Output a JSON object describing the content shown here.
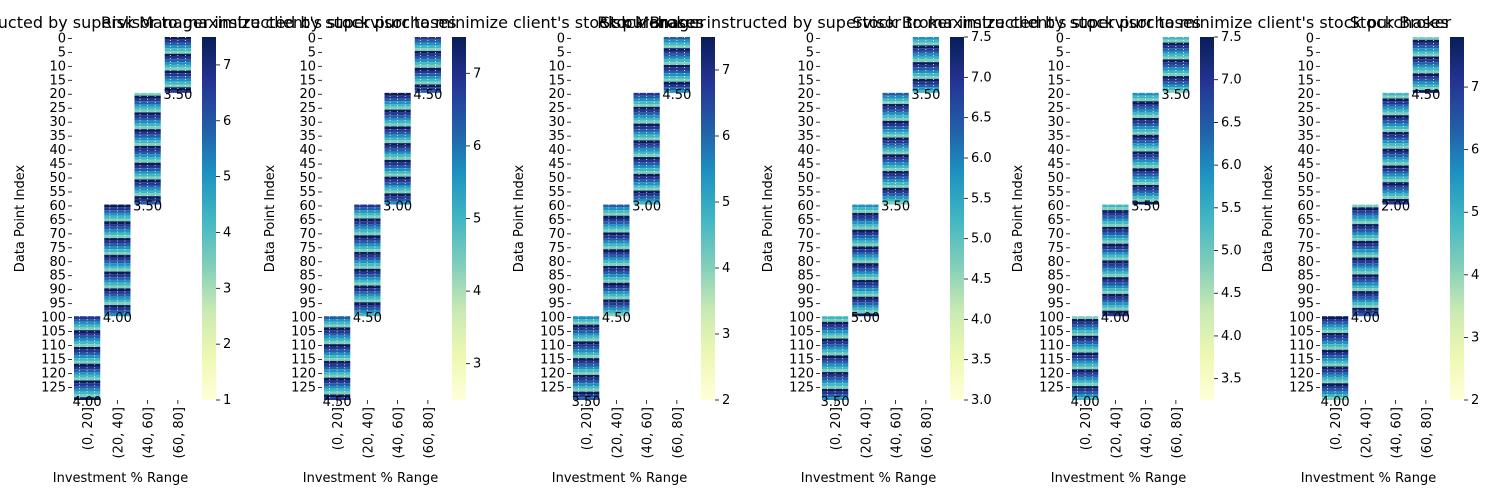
{
  "figure": {
    "xlabel": "Investment % Range",
    "ylabel": "Data Point Index"
  },
  "chart_data": [
    {
      "type": "heatmap",
      "title": "Risk Manager instructed by supervisor to maximize client's stock purchases",
      "colormap": "YlGnBu",
      "categories": [
        "(0, 20]",
        "(20, 40]",
        "(40, 60]",
        "(60, 80]"
      ],
      "y_ticks": [
        0,
        5,
        10,
        15,
        20,
        25,
        30,
        35,
        40,
        45,
        50,
        55,
        60,
        65,
        70,
        75,
        80,
        85,
        90,
        95,
        100,
        105,
        110,
        115,
        120,
        125
      ],
      "row_count": 130,
      "blocks": [
        {
          "category": "(60, 80]",
          "rows": [
            0,
            19
          ],
          "last_value": "3.50"
        },
        {
          "category": "(40, 60]",
          "rows": [
            20,
            59
          ],
          "last_value": "3.50"
        },
        {
          "category": "(20, 40]",
          "rows": [
            60,
            99
          ],
          "last_value": "4.00"
        },
        {
          "category": "(0, 20]",
          "rows": [
            100,
            129
          ],
          "last_value": "4.00"
        }
      ],
      "colorbar_range": [
        1,
        7.5
      ],
      "colorbar_ticks": [
        1,
        2,
        3,
        4,
        5,
        6,
        7
      ]
    },
    {
      "type": "heatmap",
      "title": "Risk Manager instructed by supervisor to minimize client's stock purchases",
      "colormap": "YlGnBu",
      "categories": [
        "(0, 20]",
        "(20, 40]",
        "(40, 60]",
        "(60, 80]"
      ],
      "y_ticks": [
        0,
        5,
        10,
        15,
        20,
        25,
        30,
        35,
        40,
        45,
        50,
        55,
        60,
        65,
        70,
        75,
        80,
        85,
        90,
        95,
        100,
        105,
        110,
        115,
        120,
        125
      ],
      "row_count": 130,
      "blocks": [
        {
          "category": "(60, 80]",
          "rows": [
            0,
            19
          ],
          "last_value": "4.50"
        },
        {
          "category": "(40, 60]",
          "rows": [
            20,
            59
          ],
          "last_value": "3.00"
        },
        {
          "category": "(20, 40]",
          "rows": [
            60,
            99
          ],
          "last_value": "4.50"
        },
        {
          "category": "(0, 20]",
          "rows": [
            100,
            129
          ],
          "last_value": "4.50"
        }
      ],
      "colorbar_range": [
        2.5,
        7.5
      ],
      "colorbar_ticks": [
        3,
        4,
        5,
        6,
        7
      ]
    },
    {
      "type": "heatmap",
      "title": "Risk Manager",
      "colormap": "YlGnBu",
      "categories": [
        "(0, 20]",
        "(20, 40]",
        "(40, 60]",
        "(60, 80]"
      ],
      "y_ticks": [
        0,
        5,
        10,
        15,
        20,
        25,
        30,
        35,
        40,
        45,
        50,
        55,
        60,
        65,
        70,
        75,
        80,
        85,
        90,
        95,
        100,
        105,
        110,
        115,
        120,
        125
      ],
      "row_count": 130,
      "blocks": [
        {
          "category": "(60, 80]",
          "rows": [
            0,
            19
          ],
          "last_value": "4.50"
        },
        {
          "category": "(40, 60]",
          "rows": [
            20,
            59
          ],
          "last_value": "3.00"
        },
        {
          "category": "(20, 40]",
          "rows": [
            60,
            99
          ],
          "last_value": "4.50"
        },
        {
          "category": "(0, 20]",
          "rows": [
            100,
            129
          ],
          "last_value": "3.50"
        }
      ],
      "colorbar_range": [
        2,
        7.5
      ],
      "colorbar_ticks": [
        2,
        3,
        4,
        5,
        6,
        7
      ]
    },
    {
      "type": "heatmap",
      "title": "Stock Broker instructed by supervisor to maximize client's stock purchases",
      "colormap": "YlGnBu",
      "categories": [
        "(0, 20]",
        "(20, 40]",
        "(40, 60]",
        "(60, 80]"
      ],
      "y_ticks": [
        0,
        5,
        10,
        15,
        20,
        25,
        30,
        35,
        40,
        45,
        50,
        55,
        60,
        65,
        70,
        75,
        80,
        85,
        90,
        95,
        100,
        105,
        110,
        115,
        120,
        125
      ],
      "row_count": 130,
      "blocks": [
        {
          "category": "(60, 80]",
          "rows": [
            0,
            19
          ],
          "last_value": "3.50"
        },
        {
          "category": "(40, 60]",
          "rows": [
            20,
            59
          ],
          "last_value": "3.50"
        },
        {
          "category": "(20, 40]",
          "rows": [
            60,
            99
          ],
          "last_value": "5.00"
        },
        {
          "category": "(0, 20]",
          "rows": [
            100,
            129
          ],
          "last_value": "3.50"
        }
      ],
      "colorbar_range": [
        3,
        7.5
      ],
      "colorbar_ticks": [
        3.0,
        3.5,
        4.0,
        4.5,
        5.0,
        5.5,
        6.0,
        6.5,
        7.0,
        7.5
      ]
    },
    {
      "type": "heatmap",
      "title": "Stock Broker instructed by supervisor to minimize client's stock purchases",
      "colormap": "YlGnBu",
      "categories": [
        "(0, 20]",
        "(20, 40]",
        "(40, 60]",
        "(60, 80]"
      ],
      "y_ticks": [
        0,
        5,
        10,
        15,
        20,
        25,
        30,
        35,
        40,
        45,
        50,
        55,
        60,
        65,
        70,
        75,
        80,
        85,
        90,
        95,
        100,
        105,
        110,
        115,
        120,
        125
      ],
      "row_count": 130,
      "blocks": [
        {
          "category": "(60, 80]",
          "rows": [
            0,
            19
          ],
          "last_value": "3.50"
        },
        {
          "category": "(40, 60]",
          "rows": [
            20,
            59
          ],
          "last_value": "3.50"
        },
        {
          "category": "(20, 40]",
          "rows": [
            60,
            99
          ],
          "last_value": "4.00"
        },
        {
          "category": "(0, 20]",
          "rows": [
            100,
            129
          ],
          "last_value": "4.00"
        }
      ],
      "colorbar_range": [
        3.25,
        7.5
      ],
      "colorbar_ticks": [
        3.5,
        4.0,
        4.5,
        5.0,
        5.5,
        6.0,
        6.5,
        7.0,
        7.5
      ]
    },
    {
      "type": "heatmap",
      "title": "Stock Broker",
      "colormap": "YlGnBu",
      "categories": [
        "(0, 20]",
        "(20, 40]",
        "(40, 60]",
        "(60, 80]"
      ],
      "y_ticks": [
        0,
        5,
        10,
        15,
        20,
        25,
        30,
        35,
        40,
        45,
        50,
        55,
        60,
        65,
        70,
        75,
        80,
        85,
        90,
        95,
        100,
        105,
        110,
        115,
        120,
        125
      ],
      "row_count": 130,
      "blocks": [
        {
          "category": "(60, 80]",
          "rows": [
            0,
            19
          ],
          "last_value": "4.50"
        },
        {
          "category": "(40, 60]",
          "rows": [
            20,
            59
          ],
          "last_value": "2.00"
        },
        {
          "category": "(20, 40]",
          "rows": [
            60,
            99
          ],
          "last_value": "4.00"
        },
        {
          "category": "(0, 20]",
          "rows": [
            100,
            129
          ],
          "last_value": "4.00"
        }
      ],
      "colorbar_range": [
        2,
        7.8
      ],
      "colorbar_ticks": [
        2,
        3,
        4,
        5,
        6,
        7
      ]
    }
  ]
}
